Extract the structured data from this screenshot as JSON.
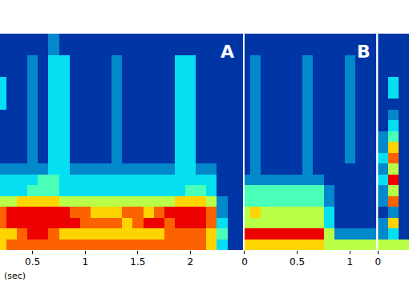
{
  "chart_data": [
    {
      "type": "heatmap",
      "title": "A",
      "xlabel": "(sec)",
      "tick_labels": "x",
      "xlim": [
        0.19,
        2.5
      ],
      "xticks": [
        0.5,
        1,
        1.5,
        2
      ],
      "ylim": [
        0,
        10
      ],
      "color_range": [
        0,
        9
      ],
      "x": [
        0.2,
        0.3,
        0.4,
        0.5,
        0.6,
        0.7,
        0.8,
        0.9,
        1.0,
        1.1,
        1.2,
        1.3,
        1.4,
        1.5,
        1.6,
        1.7,
        1.8,
        1.9,
        2.0,
        2.1,
        2.2,
        2.3,
        2.4,
        2.5
      ],
      "y": [
        0.25,
        0.75,
        1.25,
        1.75,
        2.25,
        2.75,
        3.25,
        3.75,
        4.25,
        4.75,
        5.25,
        5.75,
        6.25,
        6.75,
        7.25,
        7.75,
        8.25,
        8.75,
        9.25,
        9.75
      ],
      "z": [
        [
          6,
          7,
          7,
          7,
          7,
          7,
          7,
          7,
          7,
          7,
          7,
          7,
          7,
          7,
          7,
          7,
          7,
          7,
          7,
          7,
          6,
          3,
          1,
          1
        ],
        [
          6,
          6,
          7,
          8,
          8,
          7,
          6,
          6,
          6,
          6,
          6,
          6,
          6,
          6,
          6,
          6,
          7,
          7,
          7,
          7,
          6,
          4,
          1,
          1
        ],
        [
          7,
          8,
          8,
          8,
          8,
          8,
          8,
          8,
          7,
          7,
          7,
          7,
          6,
          7,
          8,
          8,
          7,
          8,
          8,
          8,
          7,
          3,
          1,
          1
        ],
        [
          7,
          8,
          8,
          8,
          8,
          8,
          8,
          7,
          7,
          6,
          6,
          6,
          7,
          7,
          6,
          7,
          8,
          8,
          8,
          8,
          7,
          2,
          1,
          1
        ],
        [
          5,
          5,
          6,
          6,
          6,
          6,
          5,
          5,
          5,
          5,
          5,
          5,
          5,
          5,
          5,
          5,
          5,
          6,
          6,
          6,
          5,
          2,
          1,
          1
        ],
        [
          3,
          3,
          3,
          4,
          4,
          4,
          3,
          3,
          3,
          3,
          3,
          3,
          3,
          3,
          3,
          3,
          3,
          3,
          4,
          4,
          3,
          1,
          1,
          1
        ],
        [
          3,
          3,
          3,
          3,
          4,
          4,
          3,
          3,
          3,
          3,
          3,
          3,
          3,
          3,
          3,
          3,
          3,
          3,
          3,
          3,
          3,
          1,
          1,
          1
        ],
        [
          2,
          2,
          2,
          2,
          2,
          3,
          3,
          2,
          2,
          2,
          2,
          2,
          2,
          2,
          2,
          2,
          2,
          3,
          3,
          2,
          2,
          1,
          1,
          1
        ],
        [
          1,
          1,
          1,
          2,
          1,
          3,
          3,
          1,
          1,
          1,
          1,
          2,
          1,
          1,
          1,
          1,
          1,
          3,
          3,
          1,
          1,
          1,
          1,
          1
        ],
        [
          1,
          1,
          1,
          2,
          1,
          3,
          3,
          1,
          1,
          1,
          1,
          2,
          1,
          1,
          1,
          1,
          1,
          3,
          3,
          1,
          1,
          1,
          1,
          1
        ],
        [
          1,
          1,
          1,
          2,
          1,
          3,
          3,
          1,
          1,
          1,
          1,
          2,
          1,
          1,
          1,
          1,
          1,
          3,
          3,
          1,
          1,
          1,
          1,
          1
        ],
        [
          1,
          1,
          1,
          2,
          1,
          3,
          3,
          1,
          1,
          1,
          1,
          2,
          1,
          1,
          1,
          1,
          1,
          3,
          3,
          1,
          1,
          1,
          1,
          1
        ],
        [
          1,
          1,
          1,
          2,
          1,
          3,
          3,
          1,
          1,
          1,
          1,
          2,
          1,
          1,
          1,
          1,
          1,
          3,
          3,
          1,
          1,
          1,
          1,
          1
        ],
        [
          3,
          1,
          1,
          2,
          1,
          3,
          3,
          1,
          1,
          1,
          1,
          2,
          1,
          1,
          1,
          1,
          1,
          3,
          3,
          1,
          1,
          1,
          1,
          1
        ],
        [
          3,
          1,
          1,
          2,
          1,
          3,
          3,
          1,
          1,
          1,
          1,
          2,
          1,
          1,
          1,
          1,
          1,
          3,
          3,
          1,
          1,
          1,
          1,
          1
        ],
        [
          3,
          1,
          1,
          2,
          1,
          3,
          3,
          1,
          1,
          1,
          1,
          2,
          1,
          1,
          1,
          1,
          1,
          3,
          3,
          1,
          1,
          1,
          1,
          1
        ],
        [
          1,
          1,
          1,
          2,
          1,
          3,
          3,
          1,
          1,
          1,
          1,
          2,
          1,
          1,
          1,
          1,
          1,
          3,
          3,
          1,
          1,
          1,
          1,
          1
        ],
        [
          1,
          1,
          1,
          2,
          1,
          3,
          3,
          1,
          1,
          1,
          1,
          2,
          1,
          1,
          1,
          1,
          1,
          3,
          3,
          1,
          1,
          1,
          1,
          1
        ],
        [
          1,
          1,
          1,
          1,
          1,
          2,
          1,
          1,
          1,
          1,
          1,
          1,
          1,
          1,
          1,
          1,
          1,
          1,
          1,
          1,
          1,
          1,
          1,
          1
        ],
        [
          1,
          1,
          1,
          1,
          1,
          2,
          1,
          1,
          1,
          1,
          1,
          1,
          1,
          1,
          1,
          1,
          1,
          1,
          1,
          1,
          1,
          1,
          1,
          1
        ]
      ]
    },
    {
      "type": "heatmap",
      "title": "B",
      "tick_labels": "x",
      "xlim": [
        0,
        1.25
      ],
      "xticks": [
        0,
        0.5,
        1
      ],
      "ylim": [
        0,
        10
      ],
      "color_range": [
        0,
        9
      ],
      "x": [
        0,
        0.1,
        0.2,
        0.3,
        0.4,
        0.5,
        0.6,
        0.7,
        0.8,
        0.9,
        1.0,
        1.1,
        1.2
      ],
      "y": [
        0.25,
        0.75,
        1.25,
        1.75,
        2.25,
        2.75,
        3.25,
        3.75,
        4.25,
        4.75,
        5.25,
        5.75,
        6.25,
        6.75,
        7.25,
        7.75,
        8.25,
        8.75,
        9.25,
        9.75
      ],
      "z": [
        [
          6,
          6,
          6,
          6,
          6,
          6,
          6,
          6,
          5,
          5,
          5,
          5,
          5
        ],
        [
          8,
          8,
          8,
          8,
          8,
          8,
          8,
          8,
          5,
          2,
          2,
          2,
          2
        ],
        [
          5,
          5,
          5,
          5,
          5,
          5,
          5,
          5,
          3,
          1,
          1,
          1,
          1
        ],
        [
          5,
          6,
          5,
          5,
          5,
          5,
          5,
          5,
          3,
          1,
          1,
          1,
          1
        ],
        [
          4,
          4,
          4,
          4,
          4,
          4,
          4,
          4,
          2,
          1,
          1,
          1,
          1
        ],
        [
          4,
          4,
          4,
          4,
          4,
          4,
          4,
          4,
          2,
          1,
          1,
          1,
          1
        ],
        [
          2,
          2,
          2,
          2,
          2,
          2,
          2,
          2,
          1,
          1,
          1,
          1,
          1
        ],
        [
          1,
          2,
          1,
          1,
          1,
          1,
          2,
          1,
          1,
          1,
          1,
          1,
          1
        ],
        [
          1,
          2,
          1,
          1,
          1,
          1,
          2,
          1,
          1,
          1,
          2,
          1,
          1
        ],
        [
          1,
          2,
          1,
          1,
          1,
          1,
          2,
          1,
          1,
          1,
          2,
          1,
          1
        ],
        [
          1,
          2,
          1,
          1,
          1,
          1,
          2,
          1,
          1,
          1,
          2,
          1,
          1
        ],
        [
          1,
          2,
          1,
          1,
          1,
          1,
          2,
          1,
          1,
          1,
          2,
          1,
          1
        ],
        [
          1,
          2,
          1,
          1,
          1,
          1,
          2,
          1,
          1,
          1,
          2,
          1,
          1
        ],
        [
          1,
          2,
          1,
          1,
          1,
          1,
          2,
          1,
          1,
          1,
          2,
          1,
          1
        ],
        [
          1,
          2,
          1,
          1,
          1,
          1,
          2,
          1,
          1,
          1,
          2,
          1,
          1
        ],
        [
          1,
          2,
          1,
          1,
          1,
          1,
          2,
          1,
          1,
          1,
          2,
          1,
          1
        ],
        [
          1,
          2,
          1,
          1,
          1,
          1,
          2,
          1,
          1,
          1,
          2,
          1,
          1
        ],
        [
          1,
          2,
          1,
          1,
          1,
          1,
          2,
          1,
          1,
          1,
          2,
          1,
          1
        ],
        [
          1,
          1,
          1,
          1,
          1,
          1,
          1,
          1,
          1,
          1,
          1,
          1,
          1
        ],
        [
          1,
          1,
          1,
          1,
          1,
          1,
          1,
          1,
          1,
          1,
          1,
          1,
          1
        ]
      ]
    },
    {
      "type": "heatmap",
      "tick_labels": "x",
      "xlim": [
        0,
        0.3
      ],
      "xticks": [
        0
      ],
      "ylim": [
        0,
        10
      ],
      "color_range": [
        0,
        9
      ],
      "x": [
        0.05,
        0.15,
        0.25
      ],
      "y": [
        0.25,
        0.75,
        1.25,
        1.75,
        2.25,
        2.75,
        3.25,
        3.75,
        4.25,
        4.75,
        5.25,
        5.75,
        6.25,
        6.75,
        7.25,
        7.75,
        8.25,
        8.75,
        9.25,
        9.75
      ],
      "z": [
        [
          5,
          5,
          5
        ],
        [
          2,
          3,
          1
        ],
        [
          2,
          6,
          1
        ],
        [
          1,
          2,
          1
        ],
        [
          2,
          7,
          1
        ],
        [
          2,
          5,
          1
        ],
        [
          3,
          8,
          1
        ],
        [
          2,
          5,
          1
        ],
        [
          3,
          7,
          1
        ],
        [
          2,
          6,
          1
        ],
        [
          2,
          4,
          1
        ],
        [
          1,
          3,
          1
        ],
        [
          1,
          2,
          1
        ],
        [
          1,
          1,
          1
        ],
        [
          1,
          3,
          1
        ],
        [
          1,
          3,
          1
        ],
        [
          1,
          1,
          1
        ],
        [
          1,
          1,
          1
        ],
        [
          1,
          1,
          1
        ],
        [
          1,
          1,
          1
        ]
      ]
    }
  ]
}
